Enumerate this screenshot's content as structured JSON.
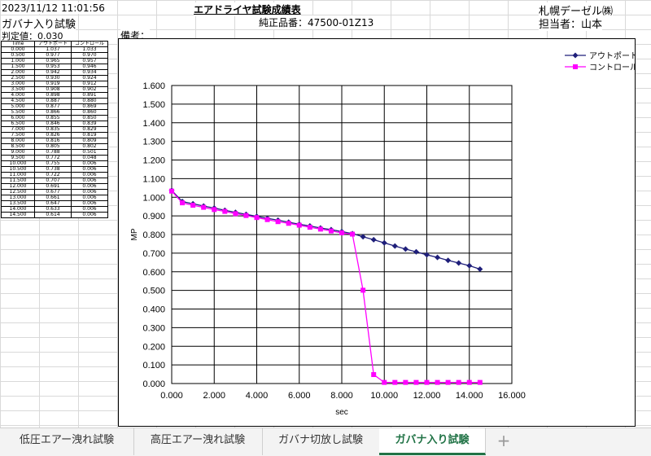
{
  "header": {
    "datetime": "2023/11/12 11:01:56",
    "sheet_title": "ガバナ入り試験",
    "report_title": "エアドライヤ試験成績表",
    "company": "札幌デーゼル㈱",
    "part_number": "純正品番：47500-01Z13",
    "person": "担当者：山本",
    "judgement": "判定値：0.030",
    "remarks": "備考："
  },
  "table": {
    "headers": [
      "Time",
      "アウトポート",
      "コントロール"
    ],
    "rows": [
      [
        "0.000",
        "1.037",
        "1.033"
      ],
      [
        "0.500",
        "0.977",
        "0.970"
      ],
      [
        "1.000",
        "0.965",
        "0.957"
      ],
      [
        "1.500",
        "0.953",
        "0.946"
      ],
      [
        "2.000",
        "0.942",
        "0.934"
      ],
      [
        "2.500",
        "0.930",
        "0.924"
      ],
      [
        "3.000",
        "0.919",
        "0.912"
      ],
      [
        "3.500",
        "0.908",
        "0.902"
      ],
      [
        "4.000",
        "0.898",
        "0.891"
      ],
      [
        "4.500",
        "0.887",
        "0.880"
      ],
      [
        "5.000",
        "0.877",
        "0.869"
      ],
      [
        "5.500",
        "0.866",
        "0.860"
      ],
      [
        "6.000",
        "0.855",
        "0.850"
      ],
      [
        "6.500",
        "0.846",
        "0.839"
      ],
      [
        "7.000",
        "0.835",
        "0.829"
      ],
      [
        "7.500",
        "0.826",
        "0.819"
      ],
      [
        "8.000",
        "0.816",
        "0.809"
      ],
      [
        "8.500",
        "0.805",
        "0.802"
      ],
      [
        "9.000",
        "0.788",
        "0.501"
      ],
      [
        "9.500",
        "0.772",
        "0.048"
      ],
      [
        "10.000",
        "0.755",
        "0.006"
      ],
      [
        "10.500",
        "0.738",
        "0.006"
      ],
      [
        "11.000",
        "0.722",
        "0.006"
      ],
      [
        "11.500",
        "0.707",
        "0.006"
      ],
      [
        "12.000",
        "0.691",
        "0.006"
      ],
      [
        "12.500",
        "0.677",
        "0.006"
      ],
      [
        "13.000",
        "0.661",
        "0.006"
      ],
      [
        "13.500",
        "0.647",
        "0.006"
      ],
      [
        "14.000",
        "0.633",
        "0.006"
      ],
      [
        "14.500",
        "0.614",
        "0.006"
      ]
    ]
  },
  "chart_data": {
    "type": "line",
    "xlabel": "sec",
    "ylabel": "MP",
    "xlim": [
      0,
      16
    ],
    "ylim": [
      0,
      1.6
    ],
    "x_ticks": [
      "0.000",
      "2.000",
      "4.000",
      "6.000",
      "8.000",
      "10.000",
      "12.000",
      "14.000",
      "16.000"
    ],
    "y_ticks": [
      "0.000",
      "0.100",
      "0.200",
      "0.300",
      "0.400",
      "0.500",
      "0.600",
      "0.700",
      "0.800",
      "0.900",
      "1.000",
      "1.100",
      "1.200",
      "1.300",
      "1.400",
      "1.500",
      "1.600"
    ],
    "grid": true,
    "legend_position": "top-right",
    "x": [
      0,
      0.5,
      1,
      1.5,
      2,
      2.5,
      3,
      3.5,
      4,
      4.5,
      5,
      5.5,
      6,
      6.5,
      7,
      7.5,
      8,
      8.5,
      9,
      9.5,
      10,
      10.5,
      11,
      11.5,
      12,
      12.5,
      13,
      13.5,
      14,
      14.5
    ],
    "series": [
      {
        "name": "アウトポート",
        "color": "#1f1f7a",
        "marker": "diamond",
        "values": [
          1.037,
          0.977,
          0.965,
          0.953,
          0.942,
          0.93,
          0.919,
          0.908,
          0.898,
          0.887,
          0.877,
          0.866,
          0.855,
          0.846,
          0.835,
          0.826,
          0.816,
          0.805,
          0.788,
          0.772,
          0.755,
          0.738,
          0.722,
          0.707,
          0.691,
          0.677,
          0.661,
          0.647,
          0.633,
          0.614
        ]
      },
      {
        "name": "コントロール",
        "color": "#ff00ff",
        "marker": "square",
        "values": [
          1.033,
          0.97,
          0.957,
          0.946,
          0.934,
          0.924,
          0.912,
          0.902,
          0.891,
          0.88,
          0.869,
          0.86,
          0.85,
          0.839,
          0.829,
          0.819,
          0.809,
          0.802,
          0.501,
          0.048,
          0.006,
          0.006,
          0.006,
          0.006,
          0.006,
          0.006,
          0.006,
          0.006,
          0.006,
          0.006
        ]
      }
    ]
  },
  "tabs": [
    {
      "label": "低圧エアー洩れ試験",
      "active": false
    },
    {
      "label": "高圧エアー洩れ試験",
      "active": false
    },
    {
      "label": "ガバナ切放し試験",
      "active": false
    },
    {
      "label": "ガバナ入り試験",
      "active": true
    }
  ],
  "add_tab_icon": "plus-icon"
}
